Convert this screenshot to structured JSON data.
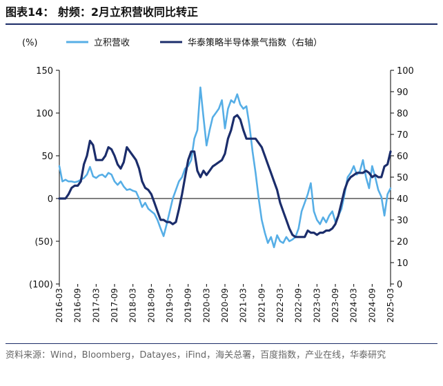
{
  "header": {
    "title": "图表14：  射频：2月立积营收同比转正"
  },
  "footer": {
    "source": "资料来源：Wind，Bloomberg，Datayes，iFind，海关总署，百度指数，产业在线，华泰研究"
  },
  "colors": {
    "left_series": "#56aee6",
    "right_series": "#1b2d6b",
    "axis": "#000000"
  },
  "chart_data": {
    "type": "line",
    "y_unit_label": "(%)",
    "yleft_ticks": [
      "150",
      "100",
      "50",
      "0",
      "(50)",
      "(100)"
    ],
    "yleft_lim": [
      -100,
      150
    ],
    "yright_ticks": [
      "100",
      "90",
      "80",
      "70",
      "60",
      "50",
      "40",
      "30",
      "20",
      "10",
      "0"
    ],
    "yright_lim": [
      0,
      100
    ],
    "x_ticks": [
      "2016-03",
      "2016-09",
      "2017-03",
      "2017-09",
      "2018-03",
      "2018-09",
      "2019-03",
      "2019-09",
      "2020-03",
      "2020-09",
      "2021-03",
      "2021-09",
      "2022-03",
      "2022-09",
      "2023-03",
      "2023-09",
      "2024-03",
      "2024-09",
      "2025-03"
    ],
    "legend": {
      "position": "top",
      "items": [
        "立积营收",
        "华泰策略半导体景气指数（右轴）"
      ]
    },
    "series": [
      {
        "name": "立积营收",
        "axis": "left",
        "values": [
          [
            "2016-03",
            38
          ],
          [
            "2016-04",
            20
          ],
          [
            "2016-05",
            22
          ],
          [
            "2016-06",
            20
          ],
          [
            "2016-07",
            20
          ],
          [
            "2016-08",
            19
          ],
          [
            "2016-09",
            20
          ],
          [
            "2016-10",
            22
          ],
          [
            "2016-11",
            24
          ],
          [
            "2016-12",
            28
          ],
          [
            "2017-01",
            37
          ],
          [
            "2017-02",
            26
          ],
          [
            "2017-03",
            24
          ],
          [
            "2017-04",
            27
          ],
          [
            "2017-05",
            28
          ],
          [
            "2017-06",
            25
          ],
          [
            "2017-07",
            30
          ],
          [
            "2017-08",
            28
          ],
          [
            "2017-09",
            20
          ],
          [
            "2017-10",
            16
          ],
          [
            "2017-11",
            20
          ],
          [
            "2017-12",
            14
          ],
          [
            "2018-01",
            10
          ],
          [
            "2018-02",
            11
          ],
          [
            "2018-03",
            9
          ],
          [
            "2018-04",
            8
          ],
          [
            "2018-05",
            0
          ],
          [
            "2018-06",
            -10
          ],
          [
            "2018-07",
            -5
          ],
          [
            "2018-08",
            -12
          ],
          [
            "2018-09",
            -15
          ],
          [
            "2018-10",
            -18
          ],
          [
            "2018-11",
            -25
          ],
          [
            "2018-12",
            -35
          ],
          [
            "2019-01",
            -44
          ],
          [
            "2019-02",
            -30
          ],
          [
            "2019-03",
            -15
          ],
          [
            "2019-04",
            0
          ],
          [
            "2019-05",
            10
          ],
          [
            "2019-06",
            20
          ],
          [
            "2019-07",
            25
          ],
          [
            "2019-08",
            35
          ],
          [
            "2019-09",
            38
          ],
          [
            "2019-10",
            45
          ],
          [
            "2019-11",
            70
          ],
          [
            "2019-12",
            80
          ],
          [
            "2020-01",
            130
          ],
          [
            "2020-02",
            95
          ],
          [
            "2020-03",
            62
          ],
          [
            "2020-04",
            80
          ],
          [
            "2020-05",
            95
          ],
          [
            "2020-06",
            100
          ],
          [
            "2020-07",
            105
          ],
          [
            "2020-08",
            115
          ],
          [
            "2020-09",
            82
          ],
          [
            "2020-10",
            105
          ],
          [
            "2020-11",
            115
          ],
          [
            "2020-12",
            112
          ],
          [
            "2021-01",
            122
          ],
          [
            "2021-02",
            110
          ],
          [
            "2021-03",
            105
          ],
          [
            "2021-04",
            108
          ],
          [
            "2021-05",
            85
          ],
          [
            "2021-06",
            55
          ],
          [
            "2021-07",
            30
          ],
          [
            "2021-08",
            0
          ],
          [
            "2021-09",
            -25
          ],
          [
            "2021-10",
            -40
          ],
          [
            "2021-11",
            -52
          ],
          [
            "2021-12",
            -45
          ],
          [
            "2022-01",
            -57
          ],
          [
            "2022-02",
            -43
          ],
          [
            "2022-03",
            -50
          ],
          [
            "2022-04",
            -52
          ],
          [
            "2022-05",
            -45
          ],
          [
            "2022-06",
            -50
          ],
          [
            "2022-07",
            -48
          ],
          [
            "2022-08",
            -45
          ],
          [
            "2022-09",
            -35
          ],
          [
            "2022-10",
            -15
          ],
          [
            "2022-11",
            -5
          ],
          [
            "2022-12",
            5
          ],
          [
            "2023-01",
            18
          ],
          [
            "2023-02",
            -15
          ],
          [
            "2023-03",
            -25
          ],
          [
            "2023-04",
            -30
          ],
          [
            "2023-05",
            -22
          ],
          [
            "2023-06",
            -28
          ],
          [
            "2023-07",
            -20
          ],
          [
            "2023-08",
            -15
          ],
          [
            "2023-09",
            -27
          ],
          [
            "2023-10",
            -20
          ],
          [
            "2023-11",
            -12
          ],
          [
            "2023-12",
            5
          ],
          [
            "2024-01",
            25
          ],
          [
            "2024-02",
            30
          ],
          [
            "2024-03",
            38
          ],
          [
            "2024-04",
            28
          ],
          [
            "2024-05",
            32
          ],
          [
            "2024-06",
            45
          ],
          [
            "2024-07",
            25
          ],
          [
            "2024-08",
            12
          ],
          [
            "2024-09",
            38
          ],
          [
            "2024-10",
            25
          ],
          [
            "2024-11",
            10
          ],
          [
            "2024-12",
            2
          ],
          [
            "2025-01",
            -20
          ],
          [
            "2025-02",
            5
          ],
          [
            "2025-03",
            12
          ]
        ]
      },
      {
        "name": "华泰策略半导体景气指数（右轴）",
        "axis": "right",
        "values": [
          [
            "2016-03",
            40
          ],
          [
            "2016-04",
            40
          ],
          [
            "2016-05",
            40
          ],
          [
            "2016-06",
            42
          ],
          [
            "2016-07",
            45
          ],
          [
            "2016-08",
            46
          ],
          [
            "2016-09",
            46
          ],
          [
            "2016-10",
            48
          ],
          [
            "2016-11",
            56
          ],
          [
            "2016-12",
            60
          ],
          [
            "2017-01",
            67
          ],
          [
            "2017-02",
            65
          ],
          [
            "2017-03",
            58
          ],
          [
            "2017-04",
            58
          ],
          [
            "2017-05",
            58
          ],
          [
            "2017-06",
            60
          ],
          [
            "2017-07",
            64
          ],
          [
            "2017-08",
            63
          ],
          [
            "2017-09",
            60
          ],
          [
            "2017-10",
            56
          ],
          [
            "2017-11",
            54
          ],
          [
            "2017-12",
            57
          ],
          [
            "2018-01",
            64
          ],
          [
            "2018-02",
            62
          ],
          [
            "2018-03",
            60
          ],
          [
            "2018-04",
            58
          ],
          [
            "2018-05",
            54
          ],
          [
            "2018-06",
            48
          ],
          [
            "2018-07",
            45
          ],
          [
            "2018-08",
            44
          ],
          [
            "2018-09",
            42
          ],
          [
            "2018-10",
            38
          ],
          [
            "2018-11",
            34
          ],
          [
            "2018-12",
            30
          ],
          [
            "2019-01",
            30
          ],
          [
            "2019-02",
            29
          ],
          [
            "2019-03",
            29
          ],
          [
            "2019-04",
            28
          ],
          [
            "2019-05",
            29
          ],
          [
            "2019-06",
            35
          ],
          [
            "2019-07",
            42
          ],
          [
            "2019-08",
            50
          ],
          [
            "2019-09",
            58
          ],
          [
            "2019-10",
            62
          ],
          [
            "2019-11",
            62
          ],
          [
            "2019-12",
            53
          ],
          [
            "2020-01",
            50
          ],
          [
            "2020-02",
            53
          ],
          [
            "2020-03",
            51
          ],
          [
            "2020-04",
            53
          ],
          [
            "2020-05",
            55
          ],
          [
            "2020-06",
            56
          ],
          [
            "2020-07",
            57
          ],
          [
            "2020-08",
            58
          ],
          [
            "2020-09",
            61
          ],
          [
            "2020-10",
            68
          ],
          [
            "2020-11",
            72
          ],
          [
            "2020-12",
            78
          ],
          [
            "2021-01",
            79
          ],
          [
            "2021-02",
            77
          ],
          [
            "2021-03",
            72
          ],
          [
            "2021-04",
            68
          ],
          [
            "2021-05",
            68
          ],
          [
            "2021-06",
            68
          ],
          [
            "2021-07",
            68
          ],
          [
            "2021-08",
            66
          ],
          [
            "2021-09",
            64
          ],
          [
            "2021-10",
            60
          ],
          [
            "2021-11",
            56
          ],
          [
            "2021-12",
            52
          ],
          [
            "2022-01",
            48
          ],
          [
            "2022-02",
            44
          ],
          [
            "2022-03",
            38
          ],
          [
            "2022-04",
            34
          ],
          [
            "2022-05",
            30
          ],
          [
            "2022-06",
            26
          ],
          [
            "2022-07",
            23
          ],
          [
            "2022-08",
            22
          ],
          [
            "2022-09",
            22
          ],
          [
            "2022-10",
            22
          ],
          [
            "2022-11",
            22
          ],
          [
            "2022-12",
            25
          ],
          [
            "2023-01",
            24
          ],
          [
            "2023-02",
            24
          ],
          [
            "2023-03",
            23
          ],
          [
            "2023-04",
            24
          ],
          [
            "2023-05",
            24
          ],
          [
            "2023-06",
            25
          ],
          [
            "2023-07",
            25
          ],
          [
            "2023-08",
            26
          ],
          [
            "2023-09",
            28
          ],
          [
            "2023-10",
            32
          ],
          [
            "2023-11",
            38
          ],
          [
            "2023-12",
            44
          ],
          [
            "2024-01",
            48
          ],
          [
            "2024-02",
            50
          ],
          [
            "2024-03",
            51
          ],
          [
            "2024-04",
            52
          ],
          [
            "2024-05",
            52
          ],
          [
            "2024-06",
            52
          ],
          [
            "2024-07",
            53
          ],
          [
            "2024-08",
            52
          ],
          [
            "2024-09",
            50
          ],
          [
            "2024-10",
            51
          ],
          [
            "2024-11",
            50
          ],
          [
            "2024-12",
            50
          ],
          [
            "2025-01",
            55
          ],
          [
            "2025-02",
            56
          ],
          [
            "2025-03",
            62
          ]
        ]
      }
    ]
  }
}
